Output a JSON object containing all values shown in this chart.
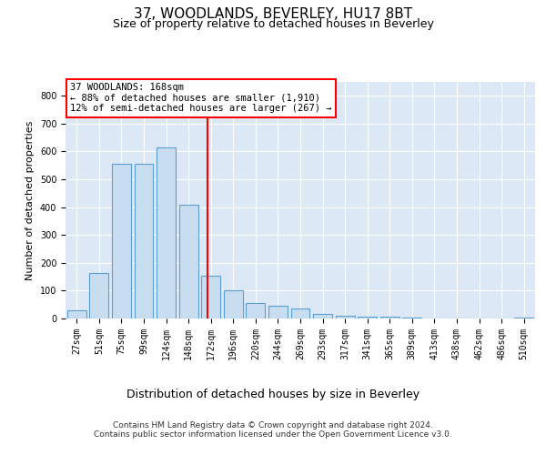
{
  "title": "37, WOODLANDS, BEVERLEY, HU17 8BT",
  "subtitle": "Size of property relative to detached houses in Beverley",
  "xlabel": "Distribution of detached houses by size in Beverley",
  "ylabel": "Number of detached properties",
  "bar_color": "#c9ddf0",
  "bar_edge_color": "#5a9fd4",
  "vline_color": "red",
  "vline_x": 5,
  "categories": [
    "27sqm",
    "51sqm",
    "75sqm",
    "99sqm",
    "124sqm",
    "148sqm",
    "172sqm",
    "196sqm",
    "220sqm",
    "244sqm",
    "269sqm",
    "293sqm",
    "317sqm",
    "341sqm",
    "365sqm",
    "389sqm",
    "413sqm",
    "438sqm",
    "462sqm",
    "486sqm",
    "510sqm"
  ],
  "values": [
    30,
    165,
    555,
    555,
    615,
    410,
    155,
    100,
    55,
    45,
    35,
    15,
    10,
    5,
    5,
    3,
    0,
    0,
    0,
    0,
    3
  ],
  "ylim": [
    0,
    850
  ],
  "yticks": [
    0,
    100,
    200,
    300,
    400,
    500,
    600,
    700,
    800
  ],
  "annotation_text": "37 WOODLANDS: 168sqm\n← 88% of detached houses are smaller (1,910)\n12% of semi-detached houses are larger (267) →",
  "footer": "Contains HM Land Registry data © Crown copyright and database right 2024.\nContains public sector information licensed under the Open Government Licence v3.0.",
  "plot_bg_color": "#dce8f5",
  "grid_color": "white",
  "title_fontsize": 11,
  "subtitle_fontsize": 9,
  "xlabel_fontsize": 9,
  "ylabel_fontsize": 8,
  "tick_fontsize": 7,
  "annotation_fontsize": 7.5,
  "footer_fontsize": 6.5
}
